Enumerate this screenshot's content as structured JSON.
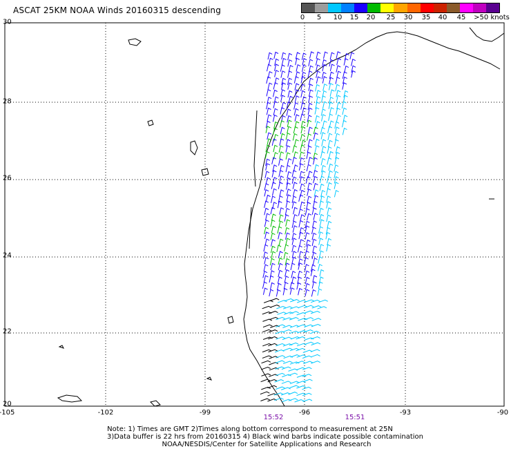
{
  "title": "ASCAT 25KM NOAA Winds 20160315 descending",
  "colorbar": {
    "colors": [
      "#555555",
      "#9c9c9c",
      "#00c8ff",
      "#0080ff",
      "#1a00ff",
      "#00bb00",
      "#ffff00",
      "#ffa500",
      "#ff6600",
      "#ff0000",
      "#cc2200",
      "#8a5a2a",
      "#ff00ff",
      "#c000c0",
      "#5a0090"
    ],
    "labels": [
      "0",
      "5",
      "10",
      "15",
      "20",
      "25",
      "30",
      "35",
      "40",
      "45",
      ">50 knots"
    ]
  },
  "axes": {
    "lat_labels": [
      "30",
      "28",
      "26",
      "24",
      "22",
      "20"
    ],
    "lon_labels": [
      "-105",
      "-102",
      "-99",
      "-96",
      "-93",
      "-90"
    ]
  },
  "times": [
    "15:52",
    "15:51"
  ],
  "notes": [
    "Note: 1) Times are GMT 2)Times along bottom correspond to measurement at 25N",
    "3)Data buffer is 22 hrs from 20160315 4) Black wind barbs indicate possible contamination",
    "NOAA/NESDIS/Center for Satellite Applications and Research"
  ],
  "barb_colors": {
    "contaminated": "#000000",
    "light": "#00c8ff",
    "moderate": "#1a00ff",
    "strong": "#00bb00"
  }
}
